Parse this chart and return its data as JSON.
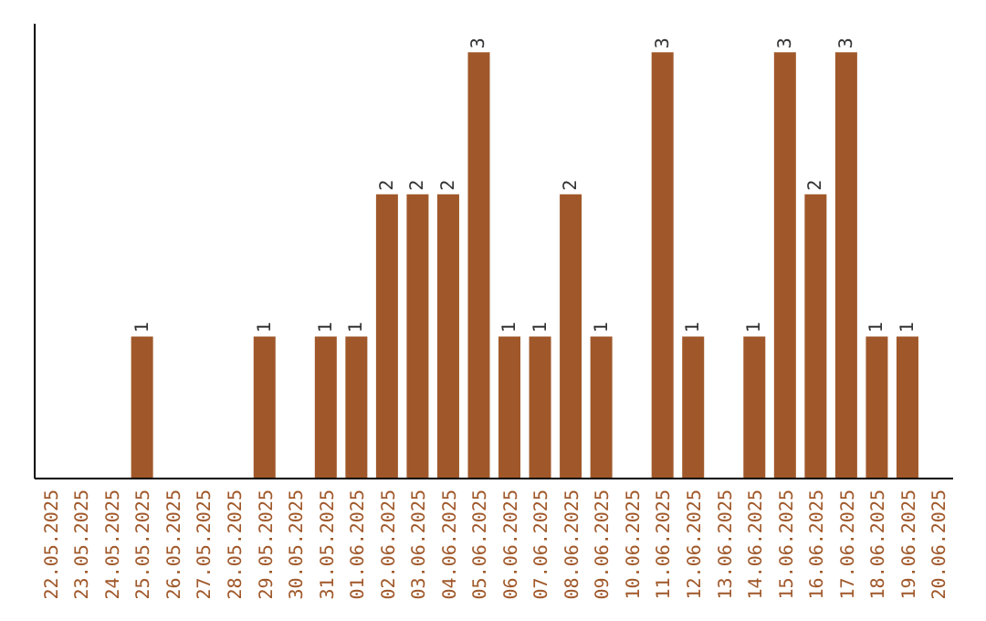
{
  "chart_data": {
    "type": "bar",
    "categories": [
      "22.05.2025",
      "23.05.2025",
      "24.05.2025",
      "25.05.2025",
      "26.05.2025",
      "27.05.2025",
      "28.05.2025",
      "29.05.2025",
      "30.05.2025",
      "31.05.2025",
      "01.06.2025",
      "02.06.2025",
      "03.06.2025",
      "04.06.2025",
      "05.06.2025",
      "06.06.2025",
      "07.06.2025",
      "08.06.2025",
      "09.06.2025",
      "10.06.2025",
      "11.06.2025",
      "12.06.2025",
      "13.06.2025",
      "14.06.2025",
      "15.06.2025",
      "16.06.2025",
      "17.06.2025",
      "18.06.2025",
      "19.06.2025",
      "20.06.2025"
    ],
    "values": [
      0,
      0,
      0,
      1,
      0,
      0,
      0,
      1,
      0,
      1,
      1,
      2,
      2,
      2,
      3,
      1,
      1,
      2,
      1,
      0,
      3,
      1,
      0,
      1,
      3,
      2,
      3,
      1,
      1,
      0
    ],
    "value_labels": [
      null,
      null,
      null,
      "1",
      null,
      null,
      null,
      "1",
      null,
      "1",
      "1",
      "2",
      "2",
      "2",
      "3",
      "1",
      "1",
      "2",
      "1",
      null,
      "3",
      "1",
      null,
      "1",
      "3",
      "2",
      "3",
      "1",
      "1",
      null
    ],
    "color": "#a0582a",
    "ylim": [
      0,
      3.2
    ],
    "tick_labels": "x"
  }
}
